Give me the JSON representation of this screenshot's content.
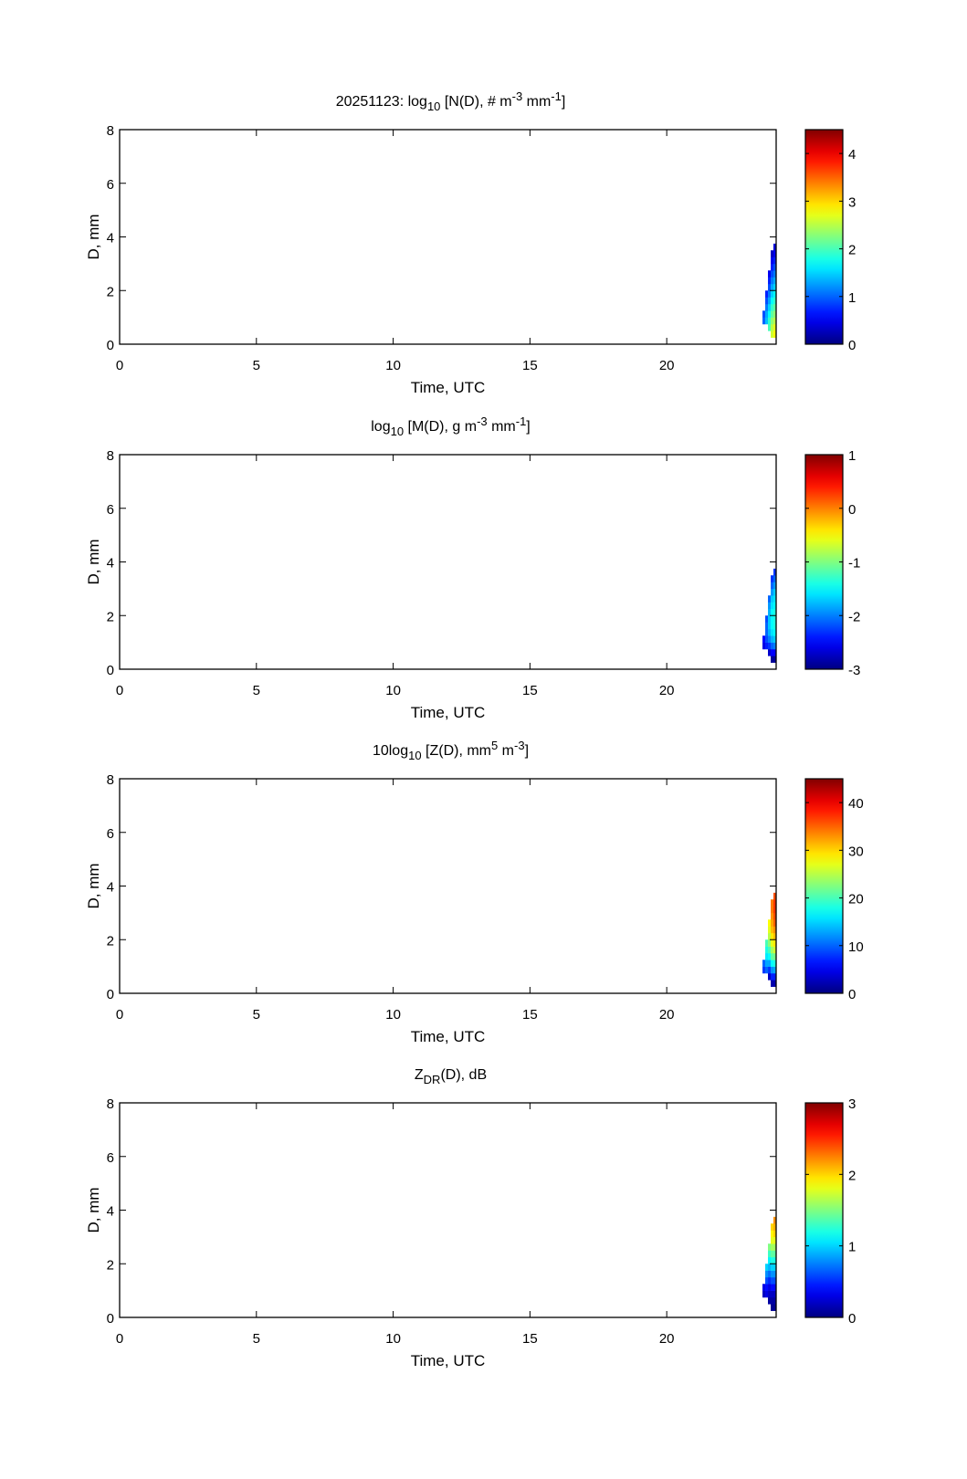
{
  "chart_data": {
    "type": "heatmap",
    "colormap": "jet",
    "x": {
      "label": "Time, UTC",
      "lim": [
        0,
        24
      ],
      "ticks": [
        0,
        5,
        10,
        15,
        20
      ]
    },
    "y": {
      "label": "D, mm",
      "lim": [
        0,
        8
      ],
      "ticks": [
        0,
        2,
        4,
        6,
        8
      ]
    },
    "time_bins": [
      23.55,
      23.65,
      23.75,
      23.85,
      23.95
    ],
    "time_bin_width": 0.1,
    "d_bin_lower_edges": [
      0.25,
      0.5,
      0.75,
      1.0,
      1.25,
      1.5,
      1.75,
      2.0,
      2.25,
      2.5,
      2.75,
      3.0,
      3.25,
      3.5
    ],
    "d_bin_width": 0.25,
    "row_ranges": [
      [
        2,
        3
      ],
      [
        2,
        6
      ],
      [
        1,
        9
      ],
      [
        0,
        12
      ],
      [
        0,
        13
      ]
    ],
    "panels": [
      {
        "name": "number-concentration",
        "title": [
          {
            "t": "20251123: log",
            "s": ""
          },
          {
            "t": "10",
            "s": "sub"
          },
          {
            "t": " [N(D), # m",
            "s": ""
          },
          {
            "t": "-3",
            "s": "sup"
          },
          {
            "t": " mm",
            "s": ""
          },
          {
            "t": "-1",
            "s": "sup"
          },
          {
            "t": "]",
            "s": ""
          }
        ],
        "clim": [
          0,
          4.5
        ],
        "cticks": [
          0,
          1,
          2,
          3,
          4
        ],
        "values": [
          [
            1.0,
            0.9
          ],
          [
            1.4,
            1.3,
            1.1,
            0.9,
            0.7
          ],
          [
            2.0,
            1.9,
            1.7,
            1.5,
            1.3,
            1.1,
            0.9,
            0.7,
            0.5
          ],
          [
            2.6,
            2.5,
            2.3,
            2.1,
            1.9,
            1.7,
            1.5,
            1.3,
            1.1,
            0.9,
            0.7,
            0.5,
            0.3
          ],
          [
            2.8,
            2.7,
            2.5,
            2.3,
            2.1,
            1.9,
            1.7,
            1.5,
            1.3,
            1.1,
            0.9,
            0.7,
            0.5,
            0.4
          ]
        ]
      },
      {
        "name": "mass-concentration",
        "title": [
          {
            "t": "log",
            "s": ""
          },
          {
            "t": "10",
            "s": "sub"
          },
          {
            "t": " [M(D), g m",
            "s": ""
          },
          {
            "t": "-3",
            "s": "sup"
          },
          {
            "t": " mm",
            "s": ""
          },
          {
            "t": "-1",
            "s": "sup"
          },
          {
            "t": "]",
            "s": ""
          }
        ],
        "clim": [
          -3,
          1
        ],
        "cticks": [
          -3,
          -2,
          -1,
          0,
          1
        ],
        "values": [
          [
            -2.6,
            -2.5
          ],
          [
            -2.4,
            -2.2,
            -2.1,
            -2.1,
            -2.2
          ],
          [
            -2.7,
            -2.3,
            -2.0,
            -1.8,
            -1.7,
            -1.7,
            -1.8,
            -1.9,
            -2.1
          ],
          [
            -2.9,
            -2.5,
            -2.1,
            -1.8,
            -1.6,
            -1.5,
            -1.5,
            -1.5,
            -1.6,
            -1.7,
            -1.9,
            -2.1,
            -2.3
          ],
          [
            -2.9,
            -2.5,
            -2.0,
            -1.7,
            -1.5,
            -1.4,
            -1.4,
            -1.4,
            -1.5,
            -1.6,
            -1.7,
            -1.9,
            -2.1,
            -2.3
          ]
        ]
      },
      {
        "name": "reflectivity",
        "title": [
          {
            "t": "10log",
            "s": ""
          },
          {
            "t": "10",
            "s": "sub"
          },
          {
            "t": " [Z(D),  mm",
            "s": ""
          },
          {
            "t": "5",
            "s": "sup"
          },
          {
            "t": " m",
            "s": ""
          },
          {
            "t": "-3",
            "s": "sup"
          },
          {
            "t": "]",
            "s": ""
          }
        ],
        "clim": [
          0,
          45
        ],
        "cticks": [
          0,
          10,
          20,
          30,
          40
        ],
        "values": [
          [
            8,
            10
          ],
          [
            10,
            13,
            16,
            18,
            20
          ],
          [
            3,
            8,
            13,
            17,
            20,
            23,
            25,
            27,
            28
          ],
          [
            2,
            7,
            12,
            17,
            21,
            24,
            27,
            29,
            31,
            32,
            33,
            34,
            34
          ],
          [
            2,
            7,
            13,
            18,
            22,
            26,
            29,
            31,
            33,
            35,
            36,
            37,
            37,
            36
          ]
        ]
      },
      {
        "name": "differential-reflectivity",
        "title": [
          {
            "t": "Z",
            "s": ""
          },
          {
            "t": "DR",
            "s": "sub"
          },
          {
            "t": "(D), dB",
            "s": ""
          }
        ],
        "clim": [
          0,
          3
        ],
        "cticks": [
          0,
          1,
          2,
          3
        ],
        "values": [
          [
            0.2,
            0.3
          ],
          [
            0.3,
            0.4,
            0.6,
            0.8,
            1.0
          ],
          [
            0.1,
            0.2,
            0.3,
            0.5,
            0.7,
            0.9,
            1.1,
            1.3,
            1.5
          ],
          [
            0.05,
            0.1,
            0.2,
            0.4,
            0.6,
            0.8,
            1.0,
            1.2,
            1.4,
            1.6,
            1.8,
            1.9,
            2.0
          ],
          [
            0.05,
            0.1,
            0.2,
            0.4,
            0.6,
            0.8,
            1.0,
            1.2,
            1.4,
            1.6,
            1.8,
            2.0,
            2.1,
            2.2
          ]
        ]
      }
    ]
  }
}
